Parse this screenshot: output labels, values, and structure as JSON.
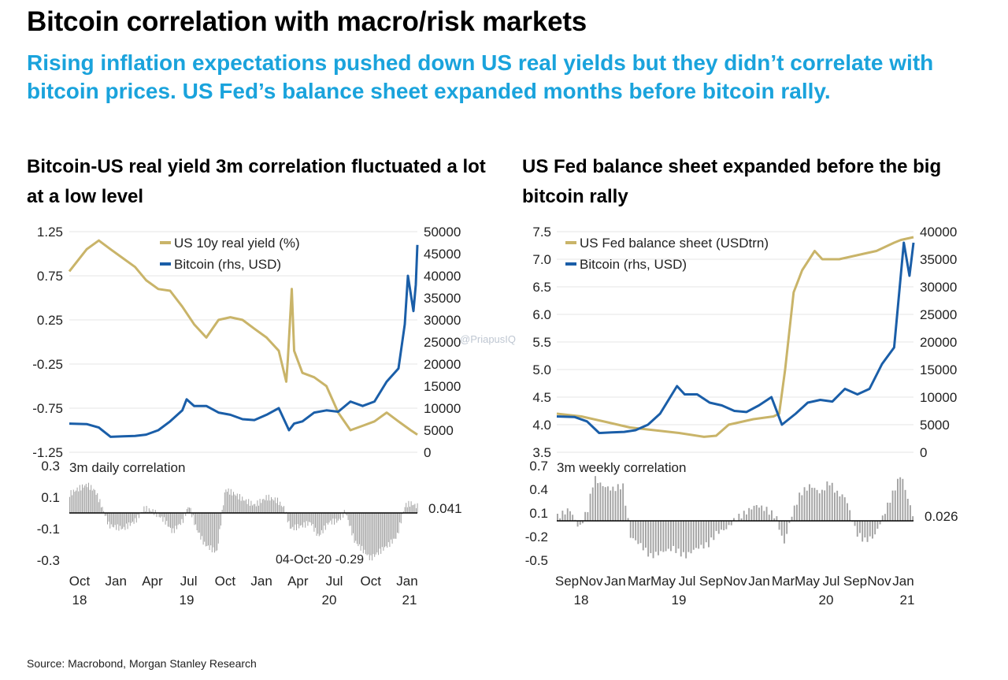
{
  "header": {
    "title": "Bitcoin correlation with macro/risk markets",
    "subtitle": "Rising inflation expectations pushed down US real yields but they didn’t correlate with bitcoin prices. US Fed’s balance sheet expanded months before bitcoin rally."
  },
  "left_title": "Bitcoin-US real yield 3m correlation fluctuated a lot at a low level",
  "right_title": "US Fed balance sheet expanded before the big bitcoin rally",
  "source": "Source: Macrobond, Morgan Stanley Research",
  "watermark": "@PriapusIQ",
  "colors": {
    "gold": "#c9b469",
    "blue": "#1a5ea8",
    "bars": "#a3a3a3",
    "accent": "#1aa3dc"
  },
  "chart_data": [
    {
      "id": "left-top",
      "type": "line",
      "legend_position": "top-center",
      "y_left_ticks": [
        "1.25",
        "0.75",
        "0.25",
        "-0.25",
        "-0.75",
        "-1.25"
      ],
      "y_left_range": [
        -1.25,
        1.25
      ],
      "y_right_ticks": [
        "50000",
        "45000",
        "40000",
        "35000",
        "30000",
        "25000",
        "20000",
        "15000",
        "10000",
        "5000",
        "0"
      ],
      "y_right_range": [
        0,
        50000
      ],
      "x_range": [
        "2018-09-01",
        "2021-02-01"
      ],
      "series": [
        {
          "name": "US 10y real yield (%)",
          "axis": "left",
          "x": [
            "2018-09-01",
            "2018-10-15",
            "2018-11-15",
            "2018-12-15",
            "2019-01-15",
            "2019-02-15",
            "2019-03-15",
            "2019-04-15",
            "2019-05-15",
            "2019-06-15",
            "2019-07-15",
            "2019-08-15",
            "2019-09-15",
            "2019-10-15",
            "2019-11-15",
            "2019-12-15",
            "2020-01-15",
            "2020-02-15",
            "2020-03-05",
            "2020-03-09",
            "2020-03-19",
            "2020-03-25",
            "2020-04-15",
            "2020-05-15",
            "2020-06-15",
            "2020-07-15",
            "2020-08-15",
            "2020-09-15",
            "2020-10-15",
            "2020-11-15",
            "2020-12-15",
            "2021-01-15",
            "2021-02-01"
          ],
          "values": [
            0.8,
            1.05,
            1.15,
            1.05,
            0.95,
            0.85,
            0.7,
            0.6,
            0.58,
            0.4,
            0.2,
            0.05,
            0.25,
            0.28,
            0.25,
            0.15,
            0.05,
            -0.1,
            -0.45,
            -0.2,
            0.6,
            -0.1,
            -0.35,
            -0.4,
            -0.5,
            -0.8,
            -1.0,
            -0.95,
            -0.9,
            -0.8,
            -0.9,
            -1.0,
            -1.05
          ]
        },
        {
          "name": "Bitcoin (rhs, USD)",
          "axis": "right",
          "x": [
            "2018-09-01",
            "2018-10-15",
            "2018-11-15",
            "2018-12-15",
            "2019-01-15",
            "2019-02-15",
            "2019-03-15",
            "2019-04-15",
            "2019-05-15",
            "2019-06-15",
            "2019-06-26",
            "2019-07-15",
            "2019-08-15",
            "2019-09-15",
            "2019-10-15",
            "2019-11-15",
            "2019-12-15",
            "2020-01-15",
            "2020-02-15",
            "2020-03-12",
            "2020-03-25",
            "2020-04-15",
            "2020-05-15",
            "2020-06-15",
            "2020-07-15",
            "2020-08-15",
            "2020-09-15",
            "2020-10-15",
            "2020-11-15",
            "2020-12-15",
            "2020-12-31",
            "2021-01-08",
            "2021-01-15",
            "2021-01-22",
            "2021-01-28",
            "2021-02-01"
          ],
          "values": [
            6500,
            6400,
            5600,
            3500,
            3600,
            3700,
            4000,
            5000,
            7000,
            9500,
            12000,
            10500,
            10500,
            9000,
            8500,
            7500,
            7300,
            8500,
            10000,
            5000,
            6500,
            7000,
            9000,
            9500,
            9200,
            11500,
            10500,
            11500,
            16000,
            19000,
            29000,
            40000,
            36000,
            32000,
            38000,
            47000
          ]
        }
      ]
    },
    {
      "id": "left-bottom",
      "type": "bar",
      "label": "3m daily correlation",
      "y_ticks": [
        "0.3",
        "0.1",
        "-0.1",
        "-0.3"
      ],
      "y_range": [
        -0.3,
        0.3
      ],
      "last_value": "0.041",
      "min_annotation": "04-Oct-20 -0.29",
      "x_ticks": [
        "Oct",
        "Jan",
        "Apr",
        "Jul",
        "Oct",
        "Jan",
        "Apr",
        "Jul",
        "Oct",
        "Jan"
      ],
      "x_years": [
        "18",
        "19",
        "20",
        "21"
      ],
      "points": [
        [
          "2018-09-01",
          0.12
        ],
        [
          "2018-09-20",
          0.15
        ],
        [
          "2018-10-15",
          0.18
        ],
        [
          "2018-11-05",
          0.14
        ],
        [
          "2018-11-25",
          0.02
        ],
        [
          "2018-12-10",
          -0.08
        ],
        [
          "2019-01-15",
          -0.1
        ],
        [
          "2019-02-15",
          -0.05
        ],
        [
          "2019-03-10",
          0.03
        ],
        [
          "2019-04-01",
          0.01
        ],
        [
          "2019-05-01",
          -0.05
        ],
        [
          "2019-05-20",
          -0.12
        ],
        [
          "2019-06-15",
          -0.05
        ],
        [
          "2019-07-01",
          0.05
        ],
        [
          "2019-07-20",
          -0.1
        ],
        [
          "2019-08-10",
          -0.2
        ],
        [
          "2019-09-10",
          -0.25
        ],
        [
          "2019-10-01",
          0.15
        ],
        [
          "2019-10-25",
          0.12
        ],
        [
          "2019-11-20",
          0.08
        ],
        [
          "2019-12-15",
          0.05
        ],
        [
          "2020-01-15",
          0.1
        ],
        [
          "2020-02-10",
          0.08
        ],
        [
          "2020-02-28",
          0.03
        ],
        [
          "2020-03-15",
          -0.1
        ],
        [
          "2020-04-15",
          -0.08
        ],
        [
          "2020-05-05",
          -0.06
        ],
        [
          "2020-05-25",
          -0.15
        ],
        [
          "2020-06-20",
          -0.06
        ],
        [
          "2020-07-15",
          -0.05
        ],
        [
          "2020-08-01",
          0.01
        ],
        [
          "2020-08-25",
          -0.18
        ],
        [
          "2020-09-20",
          -0.25
        ],
        [
          "2020-10-04",
          -0.29
        ],
        [
          "2020-10-25",
          -0.25
        ],
        [
          "2020-11-20",
          -0.2
        ],
        [
          "2020-12-10",
          -0.15
        ],
        [
          "2020-12-31",
          0.05
        ],
        [
          "2021-01-15",
          0.06
        ],
        [
          "2021-02-01",
          0.041
        ]
      ]
    },
    {
      "id": "right-top",
      "type": "line",
      "legend_position": "top-center",
      "y_left_ticks": [
        "7.5",
        "7.0",
        "6.5",
        "6.0",
        "5.5",
        "5.0",
        "4.5",
        "4.0",
        "3.5"
      ],
      "y_left_range": [
        3.5,
        7.5
      ],
      "y_right_ticks": [
        "40000",
        "35000",
        "30000",
        "25000",
        "20000",
        "15000",
        "10000",
        "5000",
        "0"
      ],
      "y_right_range": [
        0,
        40000
      ],
      "x_range": [
        "2018-09-01",
        "2021-02-01"
      ],
      "series": [
        {
          "name": "US Fed balance sheet (USDtrn)",
          "axis": "left",
          "x": [
            "2018-09-01",
            "2018-11-01",
            "2019-01-01",
            "2019-03-01",
            "2019-05-01",
            "2019-07-01",
            "2019-09-01",
            "2019-10-01",
            "2019-11-01",
            "2020-01-01",
            "2020-02-20",
            "2020-03-05",
            "2020-03-20",
            "2020-04-10",
            "2020-05-01",
            "2020-06-01",
            "2020-06-20",
            "2020-08-01",
            "2020-10-01",
            "2020-11-01",
            "2020-12-15",
            "2021-01-01",
            "2021-02-01"
          ],
          "values": [
            4.2,
            4.15,
            4.05,
            3.95,
            3.9,
            3.85,
            3.78,
            3.8,
            4.0,
            4.1,
            4.15,
            4.2,
            5.0,
            6.4,
            6.8,
            7.15,
            7.0,
            7.0,
            7.1,
            7.15,
            7.3,
            7.35,
            7.4
          ]
        },
        {
          "name": "Bitcoin (rhs, USD)",
          "axis": "right",
          "x": [
            "2018-09-01",
            "2018-10-15",
            "2018-11-15",
            "2018-12-15",
            "2019-01-15",
            "2019-02-15",
            "2019-03-15",
            "2019-04-15",
            "2019-05-15",
            "2019-06-26",
            "2019-07-15",
            "2019-08-15",
            "2019-09-15",
            "2019-10-15",
            "2019-11-15",
            "2019-12-15",
            "2020-01-15",
            "2020-02-15",
            "2020-03-12",
            "2020-04-15",
            "2020-05-15",
            "2020-06-15",
            "2020-07-15",
            "2020-08-15",
            "2020-09-15",
            "2020-10-15",
            "2020-11-15",
            "2020-12-15",
            "2021-01-08",
            "2021-01-22",
            "2021-02-01"
          ],
          "values": [
            6500,
            6400,
            5600,
            3500,
            3600,
            3700,
            4000,
            5000,
            7000,
            12000,
            10500,
            10500,
            9000,
            8500,
            7500,
            7300,
            8500,
            10000,
            5000,
            7000,
            9000,
            9500,
            9200,
            11500,
            10500,
            11500,
            16000,
            19000,
            38000,
            32000,
            38000
          ]
        }
      ]
    },
    {
      "id": "right-bottom",
      "type": "bar",
      "label": "3m weekly correlation",
      "y_ticks": [
        "0.7",
        "0.4",
        "0.1",
        "-0.2",
        "-0.5"
      ],
      "y_range": [
        -0.5,
        0.7
      ],
      "last_value": "0.026",
      "x_ticks": [
        "Sep",
        "Nov",
        "Jan",
        "Mar",
        "May",
        "Jul",
        "Sep",
        "Nov",
        "Jan",
        "Mar",
        "May",
        "Jul",
        "Sep",
        "Nov",
        "Jan"
      ],
      "x_years": [
        "18",
        "19",
        "20",
        "21"
      ],
      "points": [
        [
          "2018-09-01",
          0.05
        ],
        [
          "2018-10-01",
          0.15
        ],
        [
          "2018-10-25",
          -0.1
        ],
        [
          "2018-11-15",
          0.15
        ],
        [
          "2018-12-01",
          0.55
        ],
        [
          "2018-12-20",
          0.45
        ],
        [
          "2019-01-15",
          0.4
        ],
        [
          "2019-02-10",
          0.45
        ],
        [
          "2019-03-01",
          -0.2
        ],
        [
          "2019-03-25",
          -0.3
        ],
        [
          "2019-04-20",
          -0.45
        ],
        [
          "2019-05-15",
          -0.4
        ],
        [
          "2019-06-15",
          -0.35
        ],
        [
          "2019-07-15",
          -0.45
        ],
        [
          "2019-08-10",
          -0.35
        ],
        [
          "2019-09-10",
          -0.3
        ],
        [
          "2019-10-01",
          -0.15
        ],
        [
          "2019-10-25",
          -0.1
        ],
        [
          "2019-11-15",
          0.02
        ],
        [
          "2019-12-10",
          0.1
        ],
        [
          "2020-01-05",
          0.2
        ],
        [
          "2020-01-30",
          0.15
        ],
        [
          "2020-02-25",
          0.05
        ],
        [
          "2020-03-15",
          -0.3
        ],
        [
          "2020-04-05",
          0.1
        ],
        [
          "2020-04-25",
          0.35
        ],
        [
          "2020-05-20",
          0.45
        ],
        [
          "2020-06-15",
          0.35
        ],
        [
          "2020-07-05",
          0.5
        ],
        [
          "2020-07-25",
          0.35
        ],
        [
          "2020-08-15",
          0.3
        ],
        [
          "2020-09-10",
          -0.15
        ],
        [
          "2020-10-01",
          -0.25
        ],
        [
          "2020-10-25",
          -0.2
        ],
        [
          "2020-11-15",
          0.05
        ],
        [
          "2020-12-10",
          0.35
        ],
        [
          "2020-12-30",
          0.6
        ],
        [
          "2021-01-15",
          0.3
        ],
        [
          "2021-02-01",
          0.026
        ]
      ]
    }
  ]
}
